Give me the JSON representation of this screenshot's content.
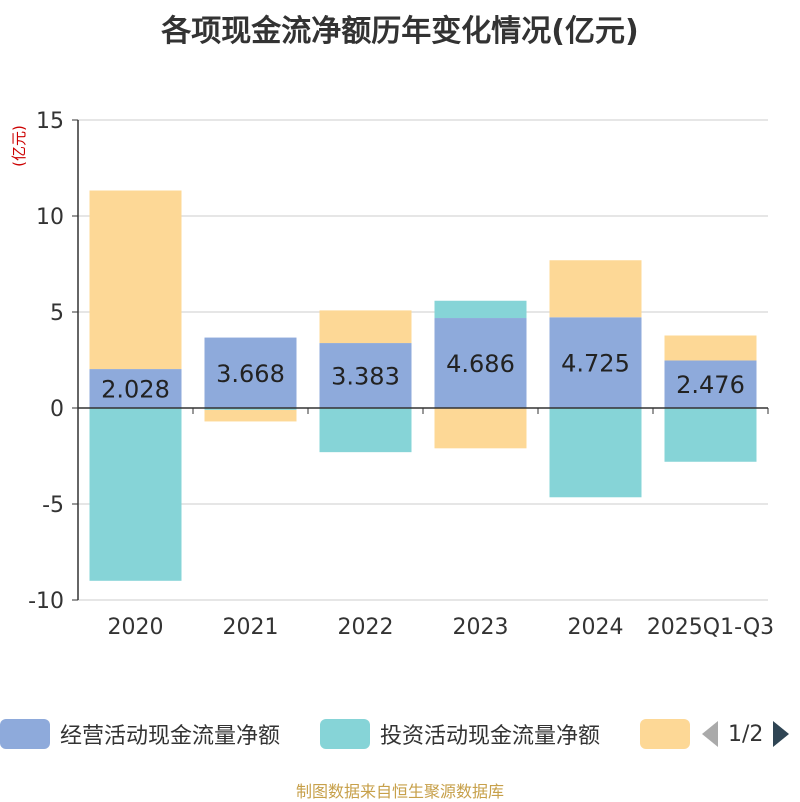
{
  "chart_data": {
    "type": "bar",
    "stacked": true,
    "title": "各项现金流净额历年变化情况(亿元)",
    "ylabel": "(亿元)",
    "ylim": [
      -10,
      15
    ],
    "yticks": [
      15,
      10,
      5,
      0,
      -5,
      -10
    ],
    "categories": [
      "2020",
      "2021",
      "2022",
      "2023",
      "2024",
      "2025Q1-Q3"
    ],
    "series": [
      {
        "name": "经营活动现金流量净额",
        "color": "#8eaadb",
        "values": [
          2.028,
          3.668,
          3.383,
          4.686,
          4.725,
          2.476
        ],
        "show_labels": true
      },
      {
        "name": "投资活动现金流量净额",
        "color": "#86d4d7",
        "values": [
          -9.0,
          -0.1,
          -2.3,
          0.9,
          -4.65,
          -2.8
        ],
        "show_labels": false
      },
      {
        "name": "",
        "color": "#fdd896",
        "values": [
          9.3,
          -0.6,
          1.7,
          -2.1,
          2.97,
          1.3
        ],
        "show_labels": false
      }
    ],
    "data_labels": [
      "2.028",
      "3.668",
      "3.383",
      "4.686",
      "4.725",
      "2.476"
    ]
  },
  "legend": {
    "items": [
      {
        "label": "经营活动现金流量净额",
        "color": "#8eaadb"
      },
      {
        "label": "投资活动现金流量净额",
        "color": "#86d4d7"
      },
      {
        "label": "",
        "color": "#fdd896"
      }
    ],
    "page": "1/2"
  },
  "colors": {
    "axis_label": "#cc0000",
    "text": "#333333",
    "grid": "#cccccc",
    "pager_active": "#2f4554",
    "pager_inactive": "#aaaaaa"
  },
  "footer": "制图数据来自恒生聚源数据库"
}
